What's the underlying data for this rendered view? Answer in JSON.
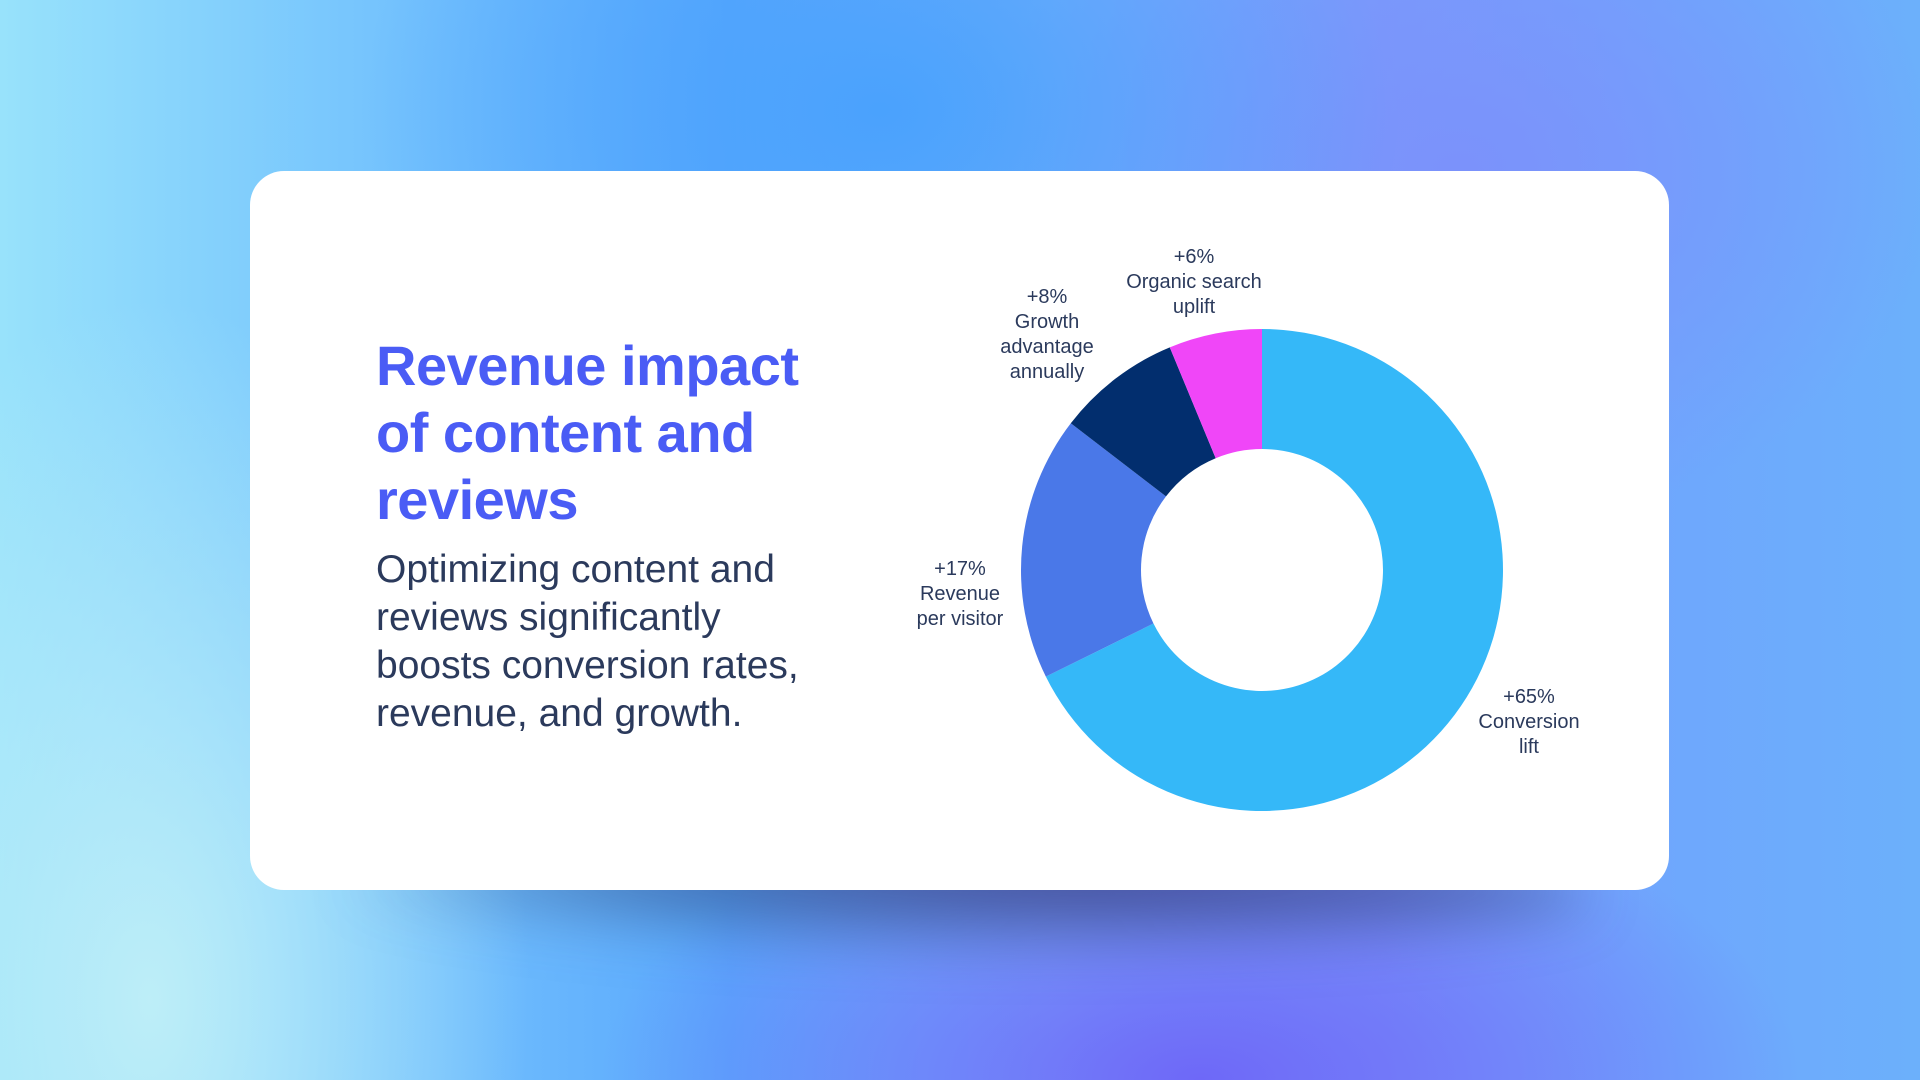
{
  "slide": {
    "title_lines": [
      "Revenue impact",
      "of content and",
      "reviews"
    ],
    "subtitle_lines": [
      "Optimizing content and",
      "reviews significantly",
      "boosts conversion rates,",
      "revenue, and growth."
    ]
  },
  "colors": {
    "title": "#4A5CF5",
    "body_text": "#2B3A5C",
    "conversion_lift": "#35B8F8",
    "revenue_per_visitor": "#4A78E8",
    "growth_advantage": "#022E6E",
    "organic_search": "#F046F8"
  },
  "labels": {
    "conversion": {
      "value": "+65%",
      "line1": "Conversion",
      "line2": "lift"
    },
    "revenue": {
      "value": "+17%",
      "line1": "Revenue",
      "line2": "per visitor"
    },
    "growth": {
      "value": "+8%",
      "line1": "Growth",
      "line2": "advantage",
      "line3": "annually"
    },
    "organic": {
      "value": "+6%",
      "line1": "Organic search",
      "line2": "uplift"
    }
  },
  "chart_data": {
    "type": "pie",
    "subtype": "donut",
    "title": "Revenue impact of content and reviews",
    "categories": [
      "Conversion lift",
      "Revenue per visitor",
      "Growth advantage annually",
      "Organic search uplift"
    ],
    "values": [
      65,
      17,
      8,
      6
    ],
    "value_labels": [
      "+65%",
      "+17%",
      "+8%",
      "+6%"
    ],
    "unit": "%",
    "colors": [
      "#35B8F8",
      "#4A78E8",
      "#022E6E",
      "#F046F8"
    ],
    "legend": "none (direct labels around donut)"
  }
}
